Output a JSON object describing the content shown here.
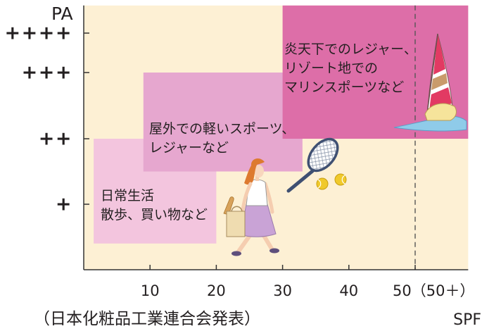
{
  "chart_data": {
    "type": "area",
    "xlabel": "SPF",
    "ylabel": "PA",
    "xlim": [
      0,
      58
    ],
    "ylim": [
      0,
      4.7
    ],
    "grid": false,
    "background_color": "#fdf0d4",
    "x_ticks": [
      {
        "value": 10,
        "label": "10"
      },
      {
        "value": 20,
        "label": "20"
      },
      {
        "value": 30,
        "label": "30"
      },
      {
        "value": 40,
        "label": "40"
      },
      {
        "value": 50,
        "label": "50（50＋）"
      }
    ],
    "y_ticks": [
      {
        "value": 1,
        "label": "+"
      },
      {
        "value": 2,
        "label": "++"
      },
      {
        "value": 3,
        "label": "+++"
      },
      {
        "value": 4,
        "label": "++++"
      }
    ],
    "reference_lines": [
      {
        "axis": "x",
        "value": 50,
        "style": "dashed"
      }
    ],
    "regions": [
      {
        "lines": [
          "日常生活",
          "散歩、買い物など"
        ],
        "x": [
          1.5,
          20
        ],
        "y": [
          0.4,
          2
        ],
        "color": "#f3c5de"
      },
      {
        "lines": [
          "屋外での軽いスポーツ、",
          "レジャーなど"
        ],
        "x": [
          9,
          33
        ],
        "y": [
          1.5,
          3
        ],
        "color": "#e6a7cf"
      },
      {
        "lines": [
          "炎天下でのレジャー、",
          "リゾート地での",
          "マリンスポーツなど"
        ],
        "x": [
          30,
          58
        ],
        "y": [
          2,
          4.7
        ],
        "color": "#dd6ea8"
      }
    ],
    "source": "（日本化粧品工業連合会発表）"
  }
}
